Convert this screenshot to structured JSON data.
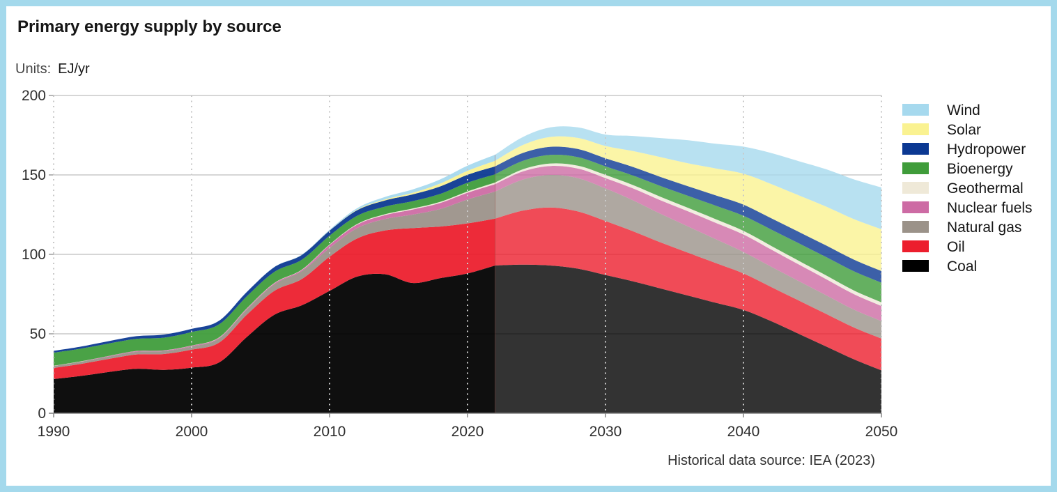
{
  "title": "Primary energy supply by source",
  "units": {
    "label": "Units:",
    "value": "EJ/yr"
  },
  "source_note": "Historical data source: IEA (2023)",
  "accent_border_color": "#A4D9EC",
  "chart_data": {
    "type": "area",
    "stacked": true,
    "title": "Primary energy supply by source",
    "xlabel": "",
    "ylabel": "EJ/yr",
    "xlim": [
      1990,
      2050
    ],
    "ylim": [
      0,
      200
    ],
    "xticks": [
      1990,
      2000,
      2010,
      2020,
      2030,
      2040,
      2050
    ],
    "yticks": [
      0,
      50,
      100,
      150,
      200
    ],
    "grid": {
      "horizontal": "solid",
      "vertical": "dotted"
    },
    "legend_position": "right",
    "history_end_x": 2022,
    "projection_opacity": 0.8,
    "history_opacity": 0.94,
    "x": [
      1990,
      1992,
      1994,
      1996,
      1998,
      2000,
      2002,
      2004,
      2006,
      2008,
      2010,
      2012,
      2014,
      2016,
      2018,
      2020,
      2022,
      2024,
      2026,
      2028,
      2030,
      2032,
      2034,
      2036,
      2038,
      2040,
      2042,
      2044,
      2046,
      2048,
      2050
    ],
    "series": [
      {
        "name": "Coal",
        "color": "#000000",
        "values": [
          21.5,
          23.5,
          26,
          28,
          27.3,
          28.7,
          32,
          48,
          62,
          68,
          77,
          86,
          87.5,
          82,
          85,
          88,
          93,
          93.5,
          93,
          91,
          87,
          83,
          78.5,
          74,
          69.5,
          65,
          58,
          50,
          42,
          34,
          27
        ]
      },
      {
        "name": "Oil",
        "color": "#EC1E2D",
        "values": [
          7,
          7.6,
          8.2,
          9,
          10,
          11.3,
          12.5,
          14,
          15,
          16.5,
          21.5,
          24,
          27.5,
          34.5,
          32.5,
          31.5,
          29.5,
          34,
          36.5,
          36,
          34,
          31.5,
          29,
          27,
          25,
          23,
          21.5,
          21,
          20.5,
          20,
          20
        ]
      },
      {
        "name": "Natural gas",
        "color": "#9B9289",
        "values": [
          1.3,
          1.4,
          1.5,
          1.7,
          1.8,
          2,
          2.6,
          3.2,
          4.2,
          5,
          5.5,
          6.5,
          7.2,
          8.5,
          11,
          15,
          17,
          19.5,
          20.5,
          21,
          20.5,
          19.5,
          18,
          16.5,
          15,
          13.5,
          12.8,
          12.2,
          11.7,
          11.2,
          11
        ]
      },
      {
        "name": "Nuclear fuels",
        "color": "#CD6BA4",
        "values": [
          0,
          0.1,
          0.3,
          0.4,
          0.4,
          0.5,
          0.5,
          0.6,
          0.6,
          0.7,
          1.9,
          2.2,
          2.5,
          3.2,
          3.8,
          4.3,
          4.7,
          5.2,
          5.6,
          6,
          6.5,
          7.5,
          8.5,
          9.5,
          10.3,
          11,
          10.8,
          10.5,
          10.2,
          9.8,
          9.5
        ]
      },
      {
        "name": "Geothermal",
        "color": "#EFE9D8",
        "values": [
          0.1,
          0.1,
          0.1,
          0.1,
          0.1,
          0.1,
          0.2,
          0.2,
          0.2,
          0.3,
          0.3,
          0.4,
          0.5,
          0.6,
          0.7,
          0.8,
          1,
          1.3,
          1.6,
          1.8,
          2,
          2.1,
          2.2,
          2.2,
          2.3,
          2.3,
          2.3,
          2.3,
          2.3,
          2.3,
          2.3
        ]
      },
      {
        "name": "Bioenergy",
        "color": "#3F9C3A",
        "values": [
          8.2,
          8,
          7.8,
          7.6,
          8,
          8.5,
          8.2,
          7.6,
          7,
          6.2,
          5.6,
          5.2,
          4.8,
          4.6,
          5,
          5.5,
          5.2,
          5.3,
          5.4,
          5.4,
          5.4,
          6,
          6.8,
          7.6,
          8.5,
          9.5,
          10.3,
          11,
          11.6,
          12.1,
          12.4
        ]
      },
      {
        "name": "Hydropower",
        "color": "#0B3892",
        "values": [
          1.2,
          1.3,
          1.5,
          1.7,
          1.9,
          2,
          2.3,
          2.7,
          3,
          3,
          3.1,
          3.5,
          3.9,
          4.3,
          4.7,
          5,
          5,
          5,
          5.1,
          5.1,
          5.1,
          5.4,
          5.7,
          6,
          6.5,
          7,
          7.1,
          7.2,
          7.25,
          7.3,
          7.3
        ]
      },
      {
        "name": "Solar",
        "color": "#FAF291",
        "values": [
          0,
          0,
          0,
          0,
          0,
          0,
          0,
          0,
          0,
          0.05,
          0.1,
          0.3,
          0.6,
          1,
          1.8,
          2.5,
          3.5,
          5,
          6.2,
          7,
          7.7,
          10,
          12.5,
          14.5,
          17,
          19.5,
          21.5,
          23,
          24.5,
          25.5,
          26.3
        ]
      },
      {
        "name": "Wind",
        "color": "#A6D9EE",
        "values": [
          0,
          0,
          0,
          0,
          0,
          0,
          0,
          0.05,
          0.1,
          0.2,
          0.5,
          1,
          1.6,
          2.1,
          2.6,
          3.2,
          3.8,
          5,
          6,
          6.6,
          7.2,
          9.5,
          12,
          14.5,
          15.5,
          17,
          19.5,
          21.5,
          23.5,
          25,
          26.3
        ]
      }
    ]
  }
}
